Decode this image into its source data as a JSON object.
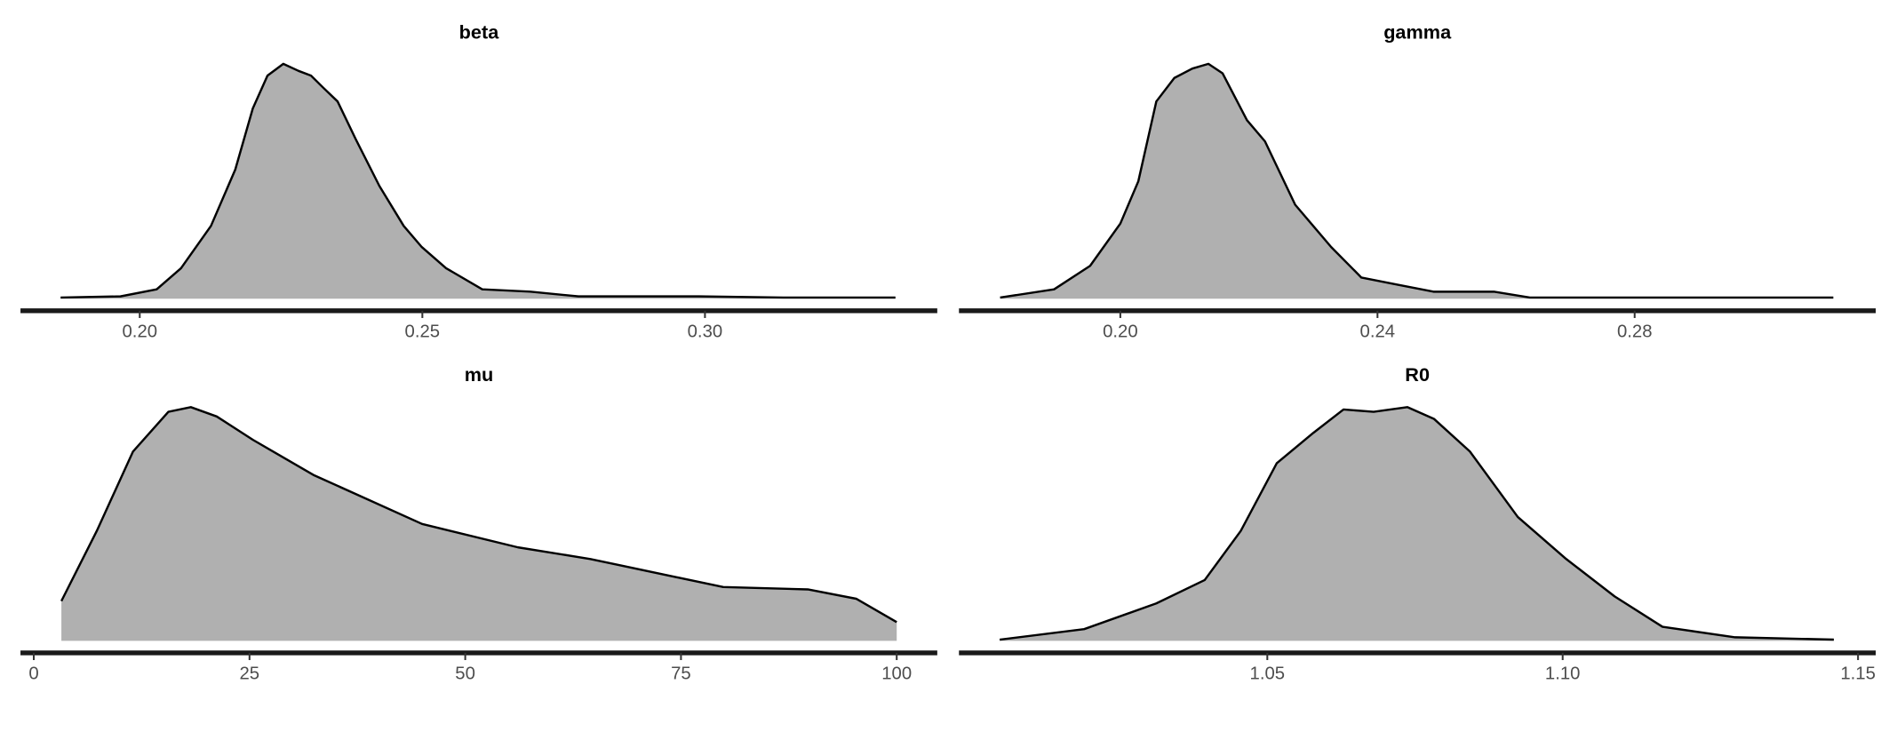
{
  "chart_data": [
    {
      "type": "area",
      "title": "beta",
      "color": "#b0b0b0",
      "line_color": "#000000",
      "x": [
        0.186,
        0.1966,
        0.203,
        0.2073,
        0.2126,
        0.2169,
        0.22,
        0.2226,
        0.2254,
        0.2281,
        0.2303,
        0.2324,
        0.235,
        0.2382,
        0.2424,
        0.2467,
        0.2499,
        0.2542,
        0.2606,
        0.2691,
        0.2776,
        0.2989,
        0.3139,
        0.3337
      ],
      "values": [
        0.005,
        0.01,
        0.04,
        0.13,
        0.31,
        0.55,
        0.81,
        0.95,
        1.0,
        0.97,
        0.95,
        0.9,
        0.84,
        0.68,
        0.48,
        0.31,
        0.22,
        0.13,
        0.04,
        0.03,
        0.01,
        0.01,
        0.005,
        0.005
      ],
      "xlim": [
        0.1789,
        0.3411
      ],
      "ylim": [
        0,
        1
      ],
      "xticks": [
        {
          "value": 0.2,
          "label": "0.20"
        },
        0.25,
        {
          "value": 0.3,
          "label": "0.30"
        }
      ]
    },
    {
      "type": "area",
      "title": "gamma",
      "color": "#b0b0b0",
      "line_color": "#000000",
      "x": [
        0.1813,
        0.1897,
        0.1953,
        0.2,
        0.2028,
        0.2056,
        0.2084,
        0.2112,
        0.2137,
        0.2159,
        0.2197,
        0.2225,
        0.2272,
        0.2328,
        0.2375,
        0.2431,
        0.2487,
        0.2581,
        0.2637,
        0.2881,
        0.3109
      ],
      "values": [
        0.005,
        0.04,
        0.14,
        0.32,
        0.5,
        0.84,
        0.94,
        0.98,
        1.0,
        0.96,
        0.76,
        0.67,
        0.4,
        0.22,
        0.09,
        0.06,
        0.03,
        0.03,
        0.005,
        0.005,
        0.005
      ],
      "xlim": [
        0.1749,
        0.3175
      ],
      "ylim": [
        0,
        1
      ],
      "xticks": [
        {
          "value": 0.2,
          "label": "0.20"
        },
        0.24,
        0.28
      ]
    },
    {
      "type": "area",
      "title": "mu",
      "color": "#b0b0b0",
      "line_color": "#000000",
      "x": [
        3.2,
        7.3,
        11.5,
        15.6,
        18.2,
        21.2,
        25.4,
        32.4,
        45.0,
        56.1,
        64.5,
        79.9,
        89.7,
        95.3,
        100
      ],
      "values": [
        0.17,
        0.47,
        0.81,
        0.98,
        1.0,
        0.96,
        0.86,
        0.71,
        0.5,
        0.4,
        0.35,
        0.23,
        0.22,
        0.18,
        0.08
      ],
      "xlim": [
        -1.54,
        104.7
      ],
      "ylim": [
        0,
        1
      ],
      "xticks": [
        0,
        25,
        50,
        75,
        100
      ]
    },
    {
      "type": "area",
      "title": "R0",
      "color": "#b0b0b0",
      "line_color": "#000000",
      "x": [
        1.0047,
        1.019,
        1.0312,
        1.0394,
        1.0455,
        1.0516,
        1.0578,
        1.0629,
        1.068,
        1.0737,
        1.0782,
        1.0843,
        1.0924,
        1.1006,
        1.1088,
        1.1169,
        1.1292,
        1.1459
      ],
      "values": [
        0.005,
        0.05,
        0.16,
        0.26,
        0.47,
        0.76,
        0.89,
        0.99,
        0.98,
        1.0,
        0.95,
        0.81,
        0.53,
        0.35,
        0.19,
        0.06,
        0.015,
        0.005
      ],
      "xlim": [
        0.9978,
        1.153
      ],
      "ylim": [
        0,
        1
      ],
      "xticks": [
        1.05,
        {
          "value": 1.1,
          "label": "1.10"
        },
        1.15
      ]
    }
  ]
}
